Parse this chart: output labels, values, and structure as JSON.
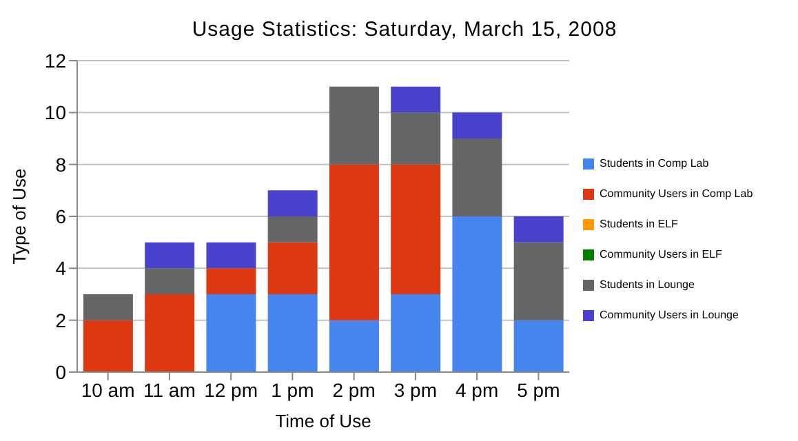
{
  "chart_data": {
    "type": "bar",
    "title": "Usage Statistics: Saturday, March 15, 2008",
    "xlabel": "Time of Use",
    "ylabel": "Type of Use",
    "categories": [
      "10 am",
      "11 am",
      "12 pm",
      "1 pm",
      "2 pm",
      "3 pm",
      "4 pm",
      "5 pm"
    ],
    "stacked": true,
    "ylim": [
      0,
      12
    ],
    "yticks": [
      0,
      2,
      4,
      6,
      8,
      10,
      12
    ],
    "grid": "y",
    "legend": "right",
    "series": [
      {
        "name": "Students in Comp Lab",
        "color": "#4684ee",
        "values": [
          0,
          0,
          3,
          3,
          2,
          3,
          6,
          2
        ]
      },
      {
        "name": "Community Users in Comp Lab",
        "color": "#dc3912",
        "values": [
          2,
          3,
          1,
          2,
          6,
          5,
          0,
          0
        ]
      },
      {
        "name": "Students in ELF",
        "color": "#ff9900",
        "values": [
          0,
          0,
          0,
          0,
          0,
          0,
          0,
          0
        ]
      },
      {
        "name": "Community Users in ELF",
        "color": "#008000",
        "values": [
          0,
          0,
          0,
          0,
          0,
          0,
          0,
          0
        ]
      },
      {
        "name": "Students in Lounge",
        "color": "#666666",
        "values": [
          1,
          1,
          0,
          1,
          3,
          2,
          3,
          3
        ]
      },
      {
        "name": "Community Users in Lounge",
        "color": "#4942cc",
        "values": [
          0,
          1,
          1,
          1,
          0,
          1,
          1,
          1
        ]
      }
    ]
  }
}
